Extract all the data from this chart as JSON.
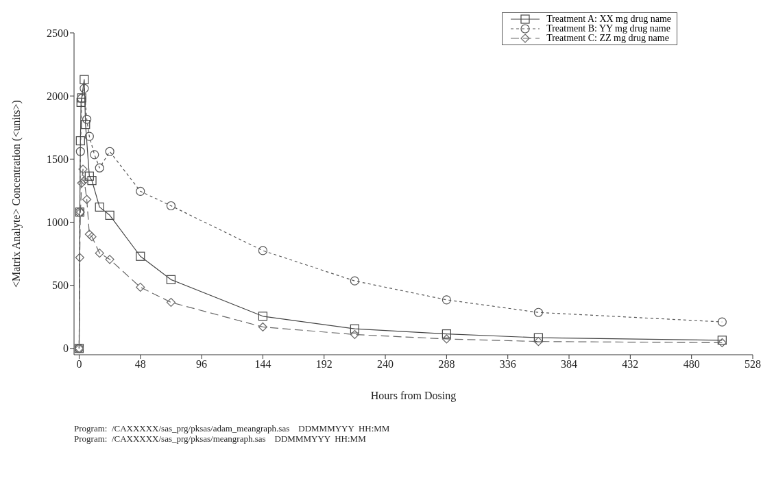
{
  "chart_data": {
    "type": "line",
    "xlabel": "Hours from Dosing",
    "ylabel": "<Matrix Analyte> Concentration (<units>)",
    "xlim": [
      -4,
      528
    ],
    "xticks": [
      0,
      48,
      96,
      144,
      192,
      240,
      288,
      336,
      384,
      432,
      480,
      528
    ],
    "ylim": [
      -50,
      2500
    ],
    "yticks": [
      0,
      500,
      1000,
      1500,
      2000,
      2500
    ],
    "grid": false,
    "legend": "top right",
    "series": [
      {
        "name": "Treatment A: XX mg drug name",
        "color": "#444444",
        "marker": "square",
        "line_style": "solid",
        "x": [
          0,
          0.5,
          1,
          1.5,
          2,
          4,
          5,
          8,
          10,
          16,
          24,
          48,
          72,
          144,
          216,
          288,
          360,
          504
        ],
        "values": [
          0,
          1080,
          1645,
          1950,
          1985,
          2130,
          1775,
          1365,
          1330,
          1120,
          1055,
          730,
          545,
          255,
          155,
          115,
          85,
          65
        ]
      },
      {
        "name": "Treatment B: YY mg drug name",
        "color": "#555555",
        "marker": "circle",
        "line_style": "dotted",
        "x": [
          0,
          0.5,
          1,
          2,
          4,
          6,
          8,
          12,
          16,
          24,
          48,
          72,
          144,
          216,
          288,
          360,
          504
        ],
        "values": [
          0,
          1080,
          1560,
          1980,
          2060,
          1815,
          1680,
          1535,
          1430,
          1560,
          1245,
          1130,
          775,
          535,
          385,
          285,
          210
        ]
      },
      {
        "name": "Treatment C: ZZ mg drug name",
        "color": "#666666",
        "marker": "diamond",
        "line_style": "dashed",
        "x": [
          0,
          0.5,
          1,
          2,
          3,
          4,
          6,
          8,
          10,
          16,
          24,
          48,
          72,
          144,
          216,
          288,
          360,
          504
        ],
        "values": [
          0,
          720,
          1080,
          1310,
          1420,
          1330,
          1180,
          905,
          885,
          755,
          705,
          485,
          365,
          170,
          110,
          75,
          55,
          45
        ]
      }
    ],
    "annotations": [
      "Program:  /CAXXXXX/sas_prg/pksas/adam_meangraph.sas    DDMMMYYY  HH:MM",
      "Program:  /CAXXXXX/sas_prg/pksas/meangraph.sas    DDMMMYYY  HH:MM"
    ]
  }
}
